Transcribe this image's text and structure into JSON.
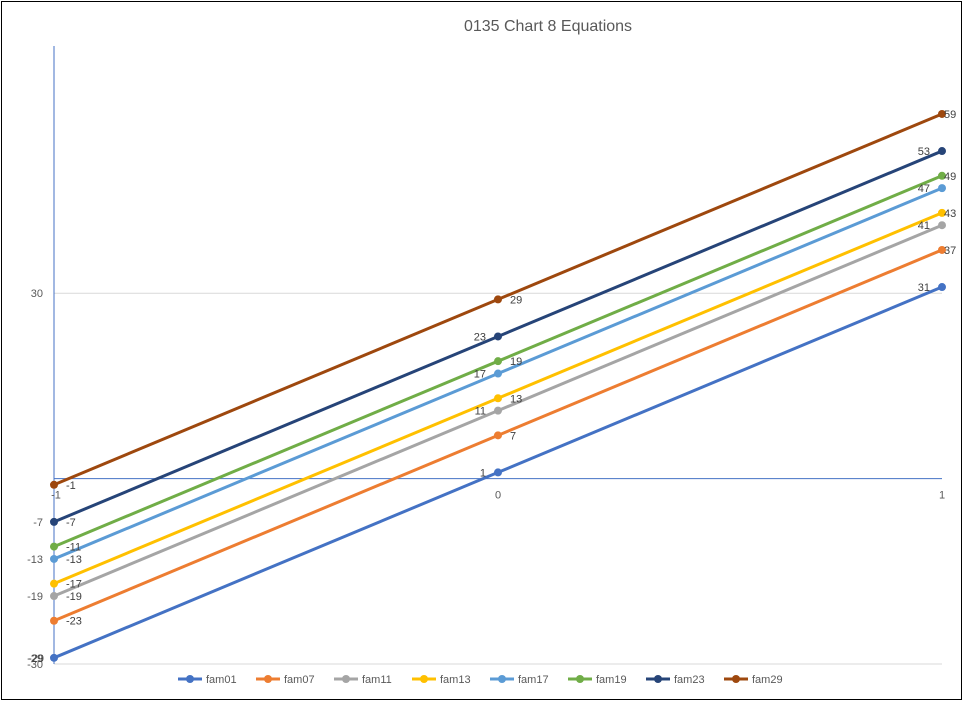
{
  "chart_data": {
    "type": "line",
    "title": "0135 Chart 8 Equations",
    "x": [
      -1,
      0,
      1
    ],
    "x_tick_labels": [
      "-1",
      "0",
      "1"
    ],
    "xlim": [
      -1,
      1
    ],
    "ylim": [
      -30,
      70
    ],
    "y_tick_labels": [
      "30",
      "-7",
      "-13",
      "-19",
      "-29",
      "-30"
    ],
    "y_tick_values": [
      30,
      -7,
      -13,
      -19,
      -29,
      -30
    ],
    "gridlines": [
      30,
      -30
    ],
    "grid": true,
    "legend_position": "bottom",
    "series": [
      {
        "name": "fam01",
        "values": [
          -29,
          1,
          31
        ],
        "labels": [
          "-29",
          "1",
          "31"
        ],
        "color": "#4472c4"
      },
      {
        "name": "fam07",
        "values": [
          -23,
          7,
          37
        ],
        "labels": [
          "-23",
          "7",
          "37"
        ],
        "color": "#ed7d31"
      },
      {
        "name": "fam11",
        "values": [
          -19,
          11,
          41
        ],
        "labels": [
          "-19",
          "11",
          "41"
        ],
        "color": "#a5a5a5"
      },
      {
        "name": "fam13",
        "values": [
          -17,
          13,
          43
        ],
        "labels": [
          "-17",
          "13",
          "43"
        ],
        "color": "#ffc000"
      },
      {
        "name": "fam17",
        "values": [
          -13,
          17,
          47
        ],
        "labels": [
          "-13",
          "17",
          "47"
        ],
        "color": "#5b9bd5"
      },
      {
        "name": "fam19",
        "values": [
          -11,
          19,
          49
        ],
        "labels": [
          "-11",
          "19",
          "49"
        ],
        "color": "#70ad47"
      },
      {
        "name": "fam23",
        "values": [
          -7,
          23,
          53
        ],
        "labels": [
          "-7",
          "23",
          "53"
        ],
        "color": "#264478"
      },
      {
        "name": "fam29",
        "values": [
          -1,
          29,
          59
        ],
        "labels": [
          "-1",
          "29",
          "59"
        ],
        "color": "#9e480e"
      }
    ]
  }
}
